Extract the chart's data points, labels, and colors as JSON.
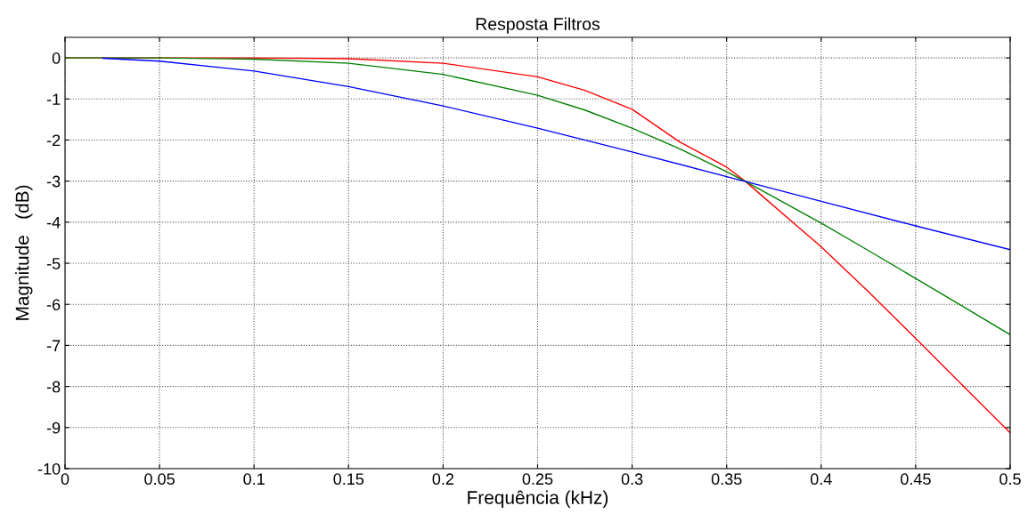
{
  "chart_data": {
    "type": "line",
    "title": "Resposta Filtros",
    "xlabel": "Frequência (kHz)",
    "ylabel": "Magnitude   (dB)",
    "series": [
      {
        "color": "#0000ff",
        "x": [
          0.02,
          0.05,
          0.1,
          0.15,
          0.2,
          0.25,
          0.3,
          0.35,
          0.36,
          0.4,
          0.45,
          0.5
        ],
        "values": [
          -0.01,
          -0.08,
          -0.32,
          -0.7,
          -1.17,
          -1.71,
          -2.29,
          -2.89,
          -3.01,
          -3.49,
          -4.09,
          -4.67
        ]
      },
      {
        "color": "#008000",
        "x": [
          0,
          0.05,
          0.1,
          0.15,
          0.2,
          0.25,
          0.275,
          0.3,
          0.325,
          0.35,
          0.36,
          0.4,
          0.425,
          0.45,
          0.475,
          0.5
        ],
        "values": [
          0,
          0,
          -0.03,
          -0.13,
          -0.4,
          -0.91,
          -1.27,
          -1.71,
          -2.21,
          -2.77,
          -3.01,
          -4.02,
          -4.69,
          -5.37,
          -6.05,
          -6.74
        ]
      },
      {
        "color": "#ff0000",
        "x": [
          0,
          0.05,
          0.1,
          0.15,
          0.2,
          0.25,
          0.275,
          0.3,
          0.325,
          0.35,
          0.36,
          0.4,
          0.425,
          0.45,
          0.475,
          0.5
        ],
        "values": [
          0,
          0,
          0,
          -0.02,
          -0.13,
          -0.46,
          -0.79,
          -1.25,
          -2.04,
          -2.66,
          -3.01,
          -4.6,
          -5.69,
          -6.83,
          -7.98,
          -9.13
        ]
      }
    ],
    "xlim": [
      0,
      0.5
    ],
    "xticks": [
      0,
      0.05,
      0.1,
      0.15,
      0.2,
      0.25,
      0.3,
      0.35,
      0.4,
      0.45,
      0.5
    ],
    "ylim": [
      -10,
      0.5
    ],
    "yticks": [
      0,
      -1,
      -2,
      -3,
      -4,
      -5,
      -6,
      -7,
      -8,
      -9,
      -10
    ],
    "grid": true,
    "line_style": "solid",
    "marker": "none"
  }
}
